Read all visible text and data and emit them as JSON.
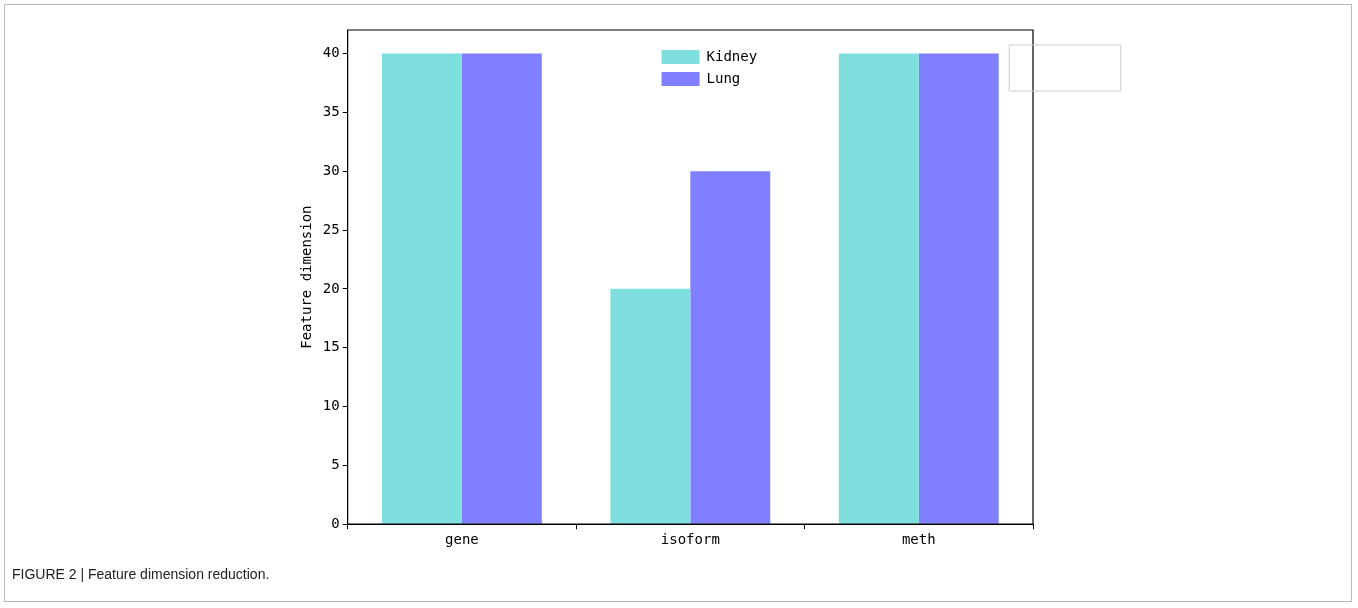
{
  "chart_data": {
    "type": "bar",
    "ylabel": "Feature dimension",
    "categories": [
      "gene",
      "isoform",
      "meth"
    ],
    "series": [
      {
        "name": "Kidney",
        "color": "#7fdfdf",
        "values": [
          40,
          20,
          40
        ]
      },
      {
        "name": "Lung",
        "color": "#7f7fff",
        "values": [
          40,
          30,
          40
        ]
      }
    ],
    "ylim": [
      0,
      42
    ],
    "yticks": [
      0,
      5,
      10,
      15,
      20,
      25,
      30,
      35,
      40
    ],
    "grid": false,
    "legend": "top",
    "annotations": [
      "FIGURE 2 | Feature dimension reduction."
    ]
  }
}
